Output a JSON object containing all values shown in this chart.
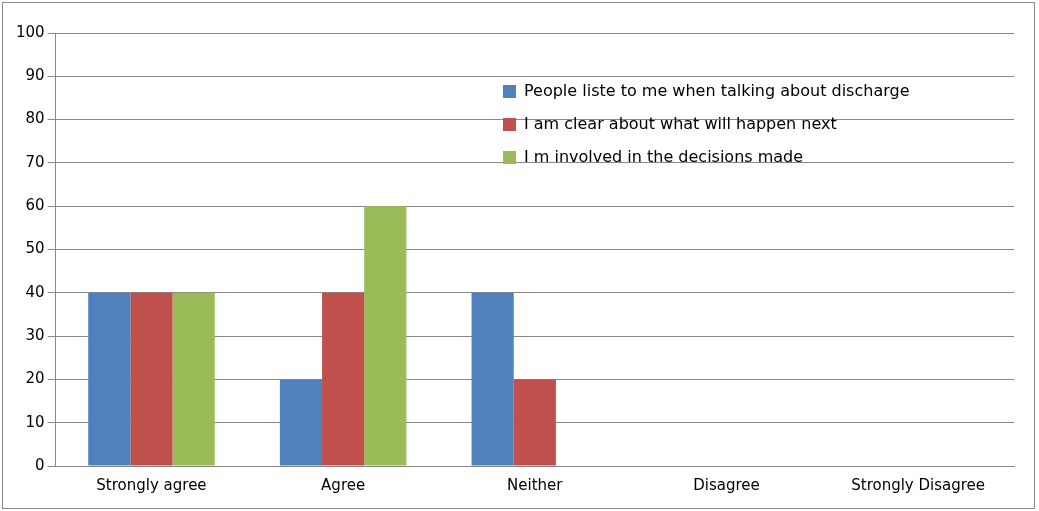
{
  "chart_data": {
    "type": "bar",
    "categories": [
      "Strongly agree",
      "Agree",
      "Neither",
      "Disagree",
      "Strongly Disagree"
    ],
    "series": [
      {
        "name": "People liste to me when talking about discharge",
        "color": "#4f81bd",
        "values": [
          40,
          20,
          40,
          0,
          0
        ]
      },
      {
        "name": "I am clear about what will happen next",
        "color": "#c0504d",
        "values": [
          40,
          40,
          20,
          0,
          0
        ]
      },
      {
        "name": "I m involved in the decisions made",
        "color": "#9bbb59",
        "values": [
          40,
          60,
          0,
          0,
          0
        ]
      }
    ],
    "ylim": [
      0,
      100
    ],
    "yticks": [
      0,
      10,
      20,
      30,
      40,
      50,
      60,
      70,
      80,
      90,
      100
    ],
    "grid": "y",
    "legend": "right"
  }
}
